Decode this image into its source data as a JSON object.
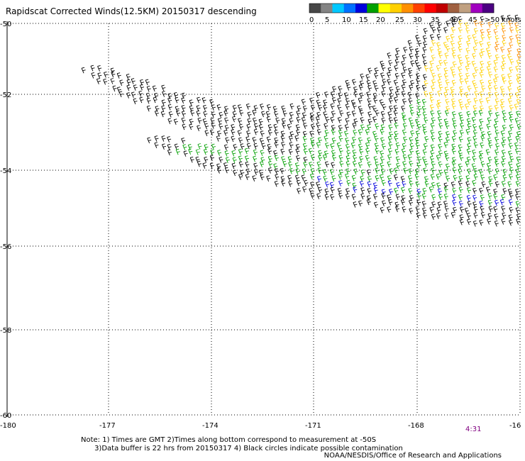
{
  "title": "Rapidscat Corrected Winds(12.5KM) 20150317 descending",
  "scale": {
    "labels": [
      "0",
      "5",
      "10",
      "15",
      "20",
      "25",
      "30",
      "35",
      "40",
      "45",
      ">50 knots"
    ],
    "colors": [
      "#474747",
      "#848484",
      "#00c8ff",
      "#0070ff",
      "#0000dd",
      "#00a000",
      "#ffff00",
      "#ffd000",
      "#ff9000",
      "#ff4000",
      "#ff0000",
      "#c00000",
      "#a06040",
      "#c0a080",
      "#a000c0",
      "#4b0082"
    ]
  },
  "axes": {
    "lon_ticks": [
      "-180",
      "-177",
      "-174",
      "-171",
      "-168",
      "-16"
    ],
    "lat_ticks": [
      "-50",
      "-52",
      "-54",
      "-56",
      "-58",
      "-60"
    ]
  },
  "swaths": [
    {
      "name": "black",
      "color": "#000000"
    },
    {
      "name": "green",
      "color": "#00a000"
    },
    {
      "name": "blue",
      "color": "#0000dd"
    },
    {
      "name": "yellow",
      "color": "#ffd000"
    },
    {
      "name": "orange",
      "color": "#ff9000"
    }
  ],
  "time_label": "4:31",
  "notes": {
    "line1": "Note: 1) Times are GMT 2)Times along bottom correspond to measurement at -50S",
    "line2": "      3)Data buffer is 22 hrs from 20150317 4) Black circles indicate possible contamination"
  },
  "credit": "NOAA/NESDIS/Office of Research and Applications"
}
